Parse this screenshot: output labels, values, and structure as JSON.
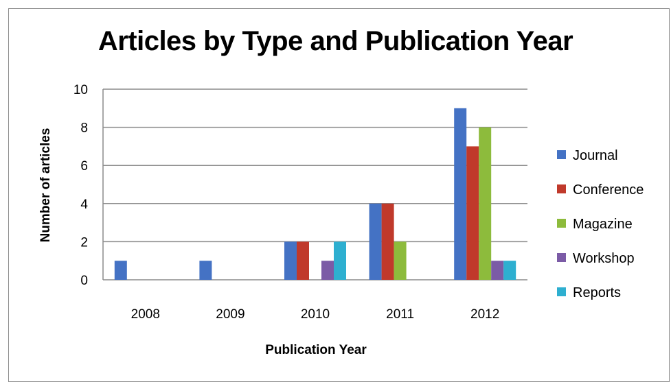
{
  "chart_data": {
    "type": "bar",
    "title": "Articles by Type and Publication Year",
    "xlabel": "Publication Year",
    "ylabel": "Number of articles",
    "categories": [
      "2008",
      "2009",
      "2010",
      "2011",
      "2012"
    ],
    "ylim": [
      0,
      10
    ],
    "yticks": [
      0,
      2,
      4,
      6,
      8,
      10
    ],
    "grid": true,
    "legend_position": "right",
    "series": [
      {
        "name": "Journal",
        "color": "#4472C4",
        "values": [
          1,
          1,
          2,
          4,
          9
        ]
      },
      {
        "name": "Conference",
        "color": "#C0392B",
        "values": [
          0,
          0,
          2,
          4,
          7
        ]
      },
      {
        "name": "Magazine",
        "color": "#8DBB3C",
        "values": [
          0,
          0,
          0,
          2,
          8
        ]
      },
      {
        "name": "Workshop",
        "color": "#7B5BA6",
        "values": [
          0,
          0,
          1,
          0,
          1
        ]
      },
      {
        "name": "Reports",
        "color": "#2EAFD0",
        "values": [
          0,
          0,
          2,
          0,
          1
        ]
      }
    ]
  }
}
